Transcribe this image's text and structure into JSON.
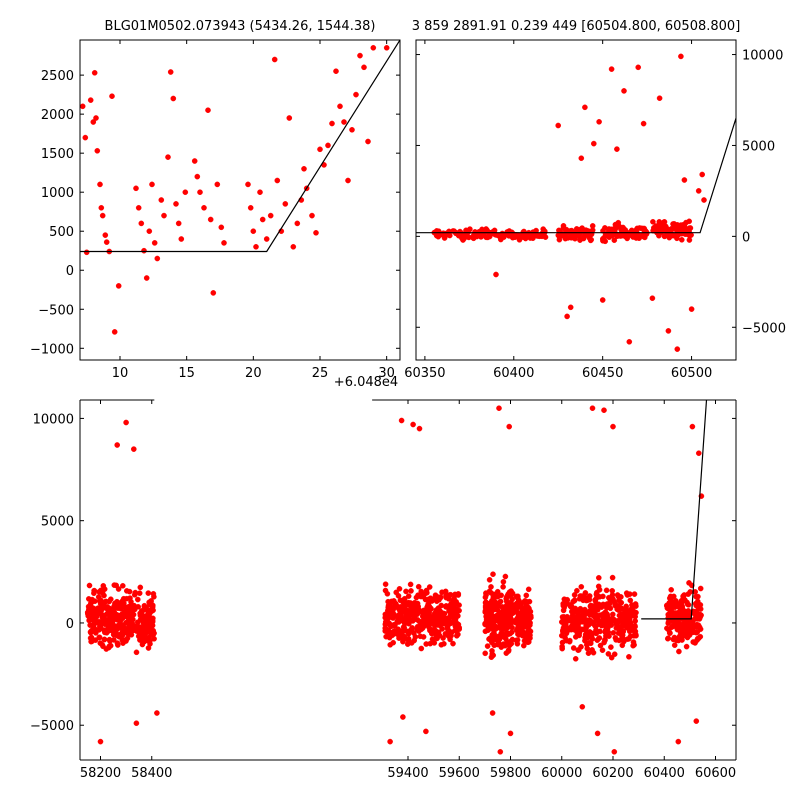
{
  "figure": {
    "title_left": "BLG01M0502.073943 (5434.26, 1544.38)",
    "title_right": "3 859 2891.91 0.239 449 [60504.800, 60508.800]",
    "offset_label": "+6.048e4",
    "point_color": "#ff0000",
    "model_color": "#000000"
  },
  "chart_data": [
    {
      "id": "top-left",
      "type": "scatter",
      "title": "BLG01M0502.073943 (5434.26, 1544.38)",
      "x_offset_label": "+6.048e4",
      "xlim": [
        7,
        31
      ],
      "ylim": [
        -1150,
        2950
      ],
      "xticks": [
        10,
        15,
        20,
        25,
        30
      ],
      "yticks": [
        -1000,
        -500,
        0,
        500,
        1000,
        1500,
        2000,
        2500
      ],
      "xtick_labels": [
        "10",
        "15",
        "20",
        "25",
        "30"
      ],
      "ytick_labels": [
        "−1000",
        "−500",
        "0",
        "500",
        "1000",
        "1500",
        "2000",
        "2500"
      ],
      "y_axis_side": "left",
      "grid": false,
      "series": [
        {
          "kind": "points",
          "points": [
            [
              7.2,
              2100
            ],
            [
              7.4,
              1700
            ],
            [
              7.8,
              2180
            ],
            [
              8.0,
              1900
            ],
            [
              8.1,
              2530
            ],
            [
              8.3,
              1530
            ],
            [
              8.5,
              1100
            ],
            [
              8.7,
              700
            ],
            [
              8.9,
              450
            ],
            [
              9.2,
              240
            ],
            [
              9.4,
              2230
            ],
            [
              9.6,
              -790
            ],
            [
              9.9,
              -200
            ],
            [
              7.5,
              230
            ],
            [
              8.2,
              1950
            ],
            [
              8.6,
              800
            ],
            [
              9.0,
              360
            ],
            [
              11.2,
              1050
            ],
            [
              11.4,
              800
            ],
            [
              11.6,
              600
            ],
            [
              11.8,
              250
            ],
            [
              12.0,
              -100
            ],
            [
              12.2,
              500
            ],
            [
              12.4,
              1100
            ],
            [
              12.6,
              350
            ],
            [
              12.8,
              150
            ],
            [
              13.1,
              900
            ],
            [
              13.3,
              700
            ],
            [
              13.6,
              1450
            ],
            [
              13.8,
              2540
            ],
            [
              14.0,
              2200
            ],
            [
              14.2,
              850
            ],
            [
              14.4,
              600
            ],
            [
              14.6,
              400
            ],
            [
              14.9,
              1000
            ],
            [
              15.6,
              1400
            ],
            [
              15.8,
              1200
            ],
            [
              16.0,
              1000
            ],
            [
              16.3,
              800
            ],
            [
              16.6,
              2050
            ],
            [
              16.8,
              650
            ],
            [
              17.0,
              -290
            ],
            [
              17.3,
              1100
            ],
            [
              17.6,
              550
            ],
            [
              17.8,
              350
            ],
            [
              19.6,
              1100
            ],
            [
              19.8,
              800
            ],
            [
              20.0,
              500
            ],
            [
              20.2,
              300
            ],
            [
              20.5,
              1000
            ],
            [
              20.7,
              650
            ],
            [
              21.0,
              400
            ],
            [
              21.3,
              700
            ],
            [
              21.6,
              2700
            ],
            [
              21.8,
              1150
            ],
            [
              22.1,
              500
            ],
            [
              22.4,
              850
            ],
            [
              22.7,
              1950
            ],
            [
              23.0,
              300
            ],
            [
              23.3,
              600
            ],
            [
              23.6,
              900
            ],
            [
              23.8,
              1300
            ],
            [
              24.0,
              1050
            ],
            [
              24.4,
              700
            ],
            [
              24.7,
              480
            ],
            [
              25.0,
              1550
            ],
            [
              25.3,
              1350
            ],
            [
              25.6,
              1600
            ],
            [
              25.9,
              1880
            ],
            [
              26.2,
              2550
            ],
            [
              26.5,
              2100
            ],
            [
              26.8,
              1900
            ],
            [
              27.1,
              1150
            ],
            [
              27.4,
              1800
            ],
            [
              27.7,
              2250
            ],
            [
              28.0,
              2750
            ],
            [
              28.3,
              2600
            ],
            [
              28.6,
              1650
            ],
            [
              29.0,
              2850
            ],
            [
              30.0,
              2850
            ]
          ]
        },
        {
          "kind": "model_line",
          "points": [
            [
              7,
              240
            ],
            [
              21,
              240
            ],
            [
              31,
              2950
            ]
          ]
        }
      ]
    },
    {
      "id": "top-right",
      "type": "scatter",
      "xlim": [
        60345,
        60525
      ],
      "ylim": [
        -6800,
        10800
      ],
      "xticks": [
        60350,
        60400,
        60450,
        60500
      ],
      "yticks": [
        -5000,
        0,
        5000,
        10000
      ],
      "xtick_labels": [
        "60350",
        "60400",
        "60450",
        "60500"
      ],
      "ytick_labels": [
        "−5000",
        "0",
        "5000",
        "10000"
      ],
      "y_axis_side": "right",
      "grid": false,
      "series": [
        {
          "kind": "points",
          "clusters": [
            {
              "x_from": 60355,
              "x_to": 60418,
              "y_center": 100,
              "y_spread": 500,
              "count": 140
            },
            {
              "x_from": 60425,
              "x_to": 60445,
              "y_center": 200,
              "y_spread": 700,
              "count": 70
            },
            {
              "x_from": 60450,
              "x_to": 60475,
              "y_center": 200,
              "y_spread": 800,
              "count": 90
            },
            {
              "x_from": 60478,
              "x_to": 60500,
              "y_center": 400,
              "y_spread": 900,
              "count": 90
            }
          ],
          "outliers": [
            [
              60390,
              -2100
            ],
            [
              60425,
              6100
            ],
            [
              60430,
              -4400
            ],
            [
              60432,
              -3900
            ],
            [
              60438,
              4300
            ],
            [
              60440,
              7100
            ],
            [
              60445,
              5100
            ],
            [
              60448,
              6300
            ],
            [
              60450,
              -3500
            ],
            [
              60455,
              9200
            ],
            [
              60458,
              4800
            ],
            [
              60462,
              8000
            ],
            [
              60465,
              -5800
            ],
            [
              60470,
              9300
            ],
            [
              60473,
              6200
            ],
            [
              60478,
              -3400
            ],
            [
              60482,
              7600
            ],
            [
              60487,
              -5200
            ],
            [
              60492,
              -6200
            ],
            [
              60494,
              9900
            ],
            [
              60496,
              3100
            ],
            [
              60500,
              -4000
            ],
            [
              60504,
              2500
            ],
            [
              60506,
              3400
            ],
            [
              60507,
              2000
            ]
          ]
        },
        {
          "kind": "model_line",
          "points": [
            [
              60345,
              200
            ],
            [
              60504.8,
              200
            ],
            [
              60525,
              6500
            ]
          ]
        }
      ]
    },
    {
      "id": "bottom",
      "type": "scatter",
      "xlim": [
        58120,
        60680
      ],
      "ylim": [
        -6700,
        10900
      ],
      "xticks": [
        58200,
        58400,
        59400,
        59600,
        59800,
        60000,
        60200,
        60400,
        60600
      ],
      "yticks": [
        -5000,
        0,
        5000,
        10000
      ],
      "xtick_labels": [
        "58200",
        "58400",
        "59400",
        "59600",
        "59800",
        "60000",
        "60200",
        "60400",
        "60600"
      ],
      "ytick_labels": [
        "−5000",
        "0",
        "5000",
        "10000"
      ],
      "y_axis_side": "left",
      "grid": false,
      "axis_break": {
        "from": 58410,
        "to": 59260
      },
      "series": [
        {
          "kind": "points",
          "clusters": [
            {
              "x_from": 58150,
              "x_to": 58410,
              "y_center": 150,
              "y_spread": 2600,
              "count": 380
            },
            {
              "x_from": 59310,
              "x_to": 59600,
              "y_center": 350,
              "y_spread": 2600,
              "count": 380
            },
            {
              "x_from": 59700,
              "x_to": 59810,
              "y_center": 250,
              "y_spread": 2800,
              "count": 240
            },
            {
              "x_from": 59820,
              "x_to": 59880,
              "y_center": 100,
              "y_spread": 2400,
              "count": 130
            },
            {
              "x_from": 60000,
              "x_to": 60290,
              "y_center": 150,
              "y_spread": 2800,
              "count": 380
            },
            {
              "x_from": 60410,
              "x_to": 60545,
              "y_center": 250,
              "y_spread": 2400,
              "count": 230
            }
          ],
          "outliers": [
            [
              58300,
              9800
            ],
            [
              58265,
              8700
            ],
            [
              58330,
              8500
            ],
            [
              58200,
              -5800
            ],
            [
              58340,
              -4900
            ],
            [
              58420,
              -4400
            ],
            [
              59375,
              9900
            ],
            [
              59420,
              9700
            ],
            [
              59445,
              9500
            ],
            [
              59330,
              -5800
            ],
            [
              59380,
              -4600
            ],
            [
              59470,
              -5300
            ],
            [
              59755,
              10500
            ],
            [
              59795,
              9600
            ],
            [
              59730,
              -4400
            ],
            [
              59760,
              -6300
            ],
            [
              59800,
              -5400
            ],
            [
              60120,
              10500
            ],
            [
              60165,
              10400
            ],
            [
              60200,
              9600
            ],
            [
              60080,
              -4100
            ],
            [
              60140,
              -5400
            ],
            [
              60205,
              -6300
            ],
            [
              60510,
              9600
            ],
            [
              60535,
              8300
            ],
            [
              60545,
              6200
            ],
            [
              60455,
              -5800
            ],
            [
              60525,
              -4800
            ]
          ]
        },
        {
          "kind": "model_line",
          "points": [
            [
              60310,
              200
            ],
            [
              60505,
              200
            ],
            [
              60565,
              10900
            ]
          ]
        }
      ]
    }
  ]
}
